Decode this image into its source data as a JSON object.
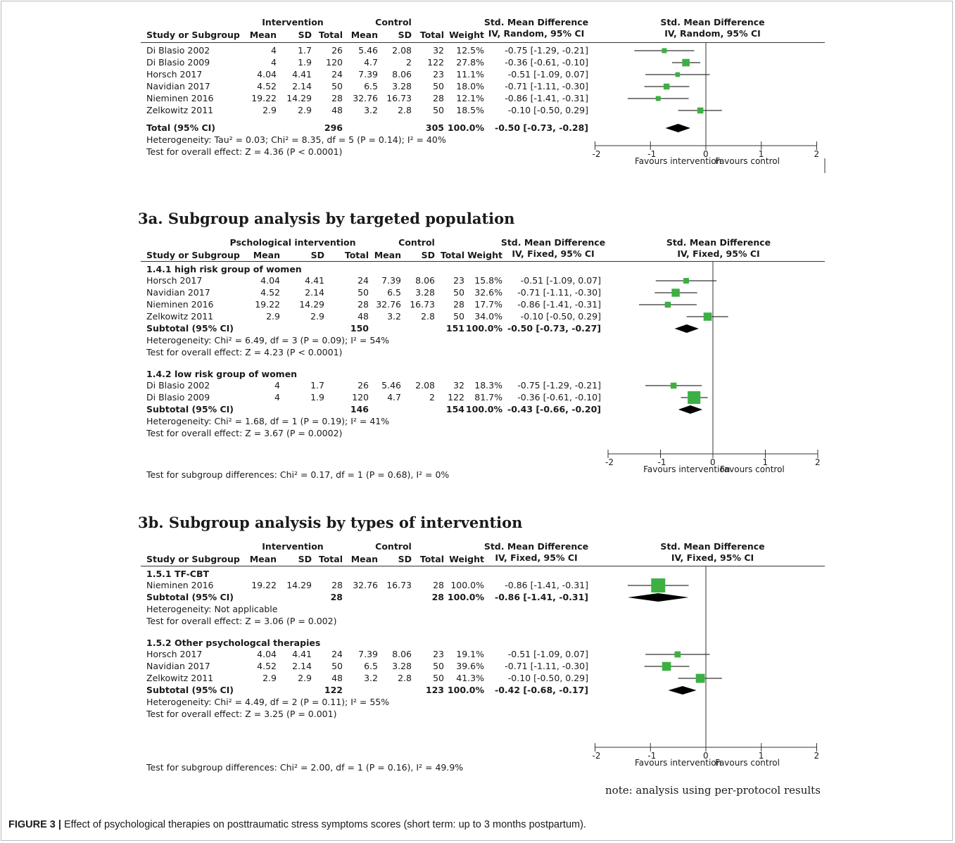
{
  "caption": {
    "label": "FIGURE 3 |",
    "text": "Effect of psychological therapies on posttraumatic stress symptoms scores (short term: up to 3 months postpartum)."
  },
  "note": "note: analysis using per-protocol results",
  "axis_ticks": [
    "-2",
    "-1",
    "0",
    "1",
    "2"
  ],
  "favours_left": "Favours intervention",
  "favours_right": "Favours control",
  "panels": [
    {
      "id": "overall",
      "section_title": "",
      "group_header": "Intervention",
      "control_header": "Control",
      "smd_header": "Std. Mean Difference",
      "method": "IV, Random, 95% CI",
      "col_headers": [
        "Study or Subgroup",
        "Mean",
        "SD",
        "Total",
        "Mean",
        "SD",
        "Total",
        "Weight"
      ],
      "subgroups": [
        {
          "title": "",
          "studies": [
            {
              "name": "Di Blasio 2002",
              "im": "4",
              "isd": "1.7",
              "it": "26",
              "cm": "5.46",
              "csd": "2.08",
              "ct": "32",
              "w": "12.5%",
              "ci": "-0.75 [-1.29, -0.21]",
              "est": -0.75,
              "lo": -1.29,
              "hi": -0.21,
              "weight": 12.5
            },
            {
              "name": "Di Blasio 2009",
              "im": "4",
              "isd": "1.9",
              "it": "120",
              "cm": "4.7",
              "csd": "2",
              "ct": "122",
              "w": "27.8%",
              "ci": "-0.36 [-0.61, -0.10]",
              "est": -0.36,
              "lo": -0.61,
              "hi": -0.1,
              "weight": 27.8
            },
            {
              "name": "Horsch 2017",
              "im": "4.04",
              "isd": "4.41",
              "it": "24",
              "cm": "7.39",
              "csd": "8.06",
              "ct": "23",
              "w": "11.1%",
              "ci": "-0.51 [-1.09, 0.07]",
              "est": -0.51,
              "lo": -1.09,
              "hi": 0.07,
              "weight": 11.1
            },
            {
              "name": "Navidian 2017",
              "im": "4.52",
              "isd": "2.14",
              "it": "50",
              "cm": "6.5",
              "csd": "3.28",
              "ct": "50",
              "w": "18.0%",
              "ci": "-0.71 [-1.11, -0.30]",
              "est": -0.71,
              "lo": -1.11,
              "hi": -0.3,
              "weight": 18.0
            },
            {
              "name": "Nieminen 2016",
              "im": "19.22",
              "isd": "14.29",
              "it": "28",
              "cm": "32.76",
              "csd": "16.73",
              "ct": "28",
              "w": "12.1%",
              "ci": "-0.86 [-1.41, -0.31]",
              "est": -0.86,
              "lo": -1.41,
              "hi": -0.31,
              "weight": 12.1
            },
            {
              "name": "Zelkowitz 2011",
              "im": "2.9",
              "isd": "2.9",
              "it": "48",
              "cm": "3.2",
              "csd": "2.8",
              "ct": "50",
              "w": "18.5%",
              "ci": "-0.10 [-0.50, 0.29]",
              "est": -0.1,
              "lo": -0.5,
              "hi": 0.29,
              "weight": 18.5
            }
          ],
          "subtotal": {
            "label": "Total (95% CI)",
            "it": "296",
            "ct": "305",
            "w": "100.0%",
            "ci": "-0.50 [-0.73, -0.28]",
            "est": -0.5,
            "lo": -0.73,
            "hi": -0.28
          },
          "het": "Heterogeneity: Tau² = 0.03; Chi² = 8.35, df = 5 (P = 0.14); I² = 40%",
          "test": "Test for overall effect: Z = 4.36 (P < 0.0001)"
        }
      ],
      "diff": ""
    },
    {
      "id": "3a",
      "section_title": "3a. Subgroup analysis by targeted population",
      "group_header": "Pschological intervention",
      "control_header": "Control",
      "smd_header": "Std. Mean Difference",
      "method": "IV, Fixed, 95% CI",
      "col_headers": [
        "Study or Subgroup",
        "Mean",
        "SD",
        "Total",
        "Mean",
        "SD",
        "Total",
        "Weight"
      ],
      "subgroups": [
        {
          "title": "1.4.1 high risk group of women",
          "studies": [
            {
              "name": "Horsch 2017",
              "im": "4.04",
              "isd": "4.41",
              "it": "24",
              "cm": "7.39",
              "csd": "8.06",
              "ct": "23",
              "w": "15.8%",
              "ci": "-0.51 [-1.09, 0.07]",
              "est": -0.51,
              "lo": -1.09,
              "hi": 0.07,
              "weight": 15.8
            },
            {
              "name": "Navidian 2017",
              "im": "4.52",
              "isd": "2.14",
              "it": "50",
              "cm": "6.5",
              "csd": "3.28",
              "ct": "50",
              "w": "32.6%",
              "ci": "-0.71 [-1.11, -0.30]",
              "est": -0.71,
              "lo": -1.11,
              "hi": -0.3,
              "weight": 32.6
            },
            {
              "name": "Nieminen 2016",
              "im": "19.22",
              "isd": "14.29",
              "it": "28",
              "cm": "32.76",
              "csd": "16.73",
              "ct": "28",
              "w": "17.7%",
              "ci": "-0.86 [-1.41, -0.31]",
              "est": -0.86,
              "lo": -1.41,
              "hi": -0.31,
              "weight": 17.7
            },
            {
              "name": "Zelkowitz 2011",
              "im": "2.9",
              "isd": "2.9",
              "it": "48",
              "cm": "3.2",
              "csd": "2.8",
              "ct": "50",
              "w": "34.0%",
              "ci": "-0.10 [-0.50, 0.29]",
              "est": -0.1,
              "lo": -0.5,
              "hi": 0.29,
              "weight": 34.0
            }
          ],
          "subtotal": {
            "label": "Subtotal (95% CI)",
            "it": "150",
            "ct": "151",
            "w": "100.0%",
            "ci": "-0.50 [-0.73, -0.27]",
            "est": -0.5,
            "lo": -0.73,
            "hi": -0.27
          },
          "het": "Heterogeneity: Chi² = 6.49, df = 3 (P = 0.09); I² = 54%",
          "test": "Test for overall effect: Z = 4.23 (P < 0.0001)"
        },
        {
          "title": "1.4.2 low risk group of women",
          "studies": [
            {
              "name": "Di Blasio 2002",
              "im": "4",
              "isd": "1.7",
              "it": "26",
              "cm": "5.46",
              "csd": "2.08",
              "ct": "32",
              "w": "18.3%",
              "ci": "-0.75 [-1.29, -0.21]",
              "est": -0.75,
              "lo": -1.29,
              "hi": -0.21,
              "weight": 18.3
            },
            {
              "name": "Di Blasio 2009",
              "im": "4",
              "isd": "1.9",
              "it": "120",
              "cm": "4.7",
              "csd": "2",
              "ct": "122",
              "w": "81.7%",
              "ci": "-0.36 [-0.61, -0.10]",
              "est": -0.36,
              "lo": -0.61,
              "hi": -0.1,
              "weight": 81.7
            }
          ],
          "subtotal": {
            "label": "Subtotal (95% CI)",
            "it": "146",
            "ct": "154",
            "w": "100.0%",
            "ci": "-0.43 [-0.66, -0.20]",
            "est": -0.43,
            "lo": -0.66,
            "hi": -0.2
          },
          "het": "Heterogeneity: Chi² = 1.68, df = 1 (P = 0.19); I² = 41%",
          "test": "Test for overall effect: Z = 3.67 (P = 0.0002)"
        }
      ],
      "diff": "Test for subgroup differences: Chi² = 0.17, df = 1 (P = 0.68), I² = 0%"
    },
    {
      "id": "3b",
      "section_title": "3b. Subgroup analysis by types of intervention",
      "group_header": "Intervention",
      "control_header": "Control",
      "smd_header": "Std. Mean Difference",
      "method": "IV, Fixed, 95% CI",
      "col_headers": [
        "Study or Subgroup",
        "Mean",
        "SD",
        "Total",
        "Mean",
        "SD",
        "Total",
        "Weight"
      ],
      "subgroups": [
        {
          "title": "1.5.1 TF-CBT",
          "studies": [
            {
              "name": "Nieminen 2016",
              "im": "19.22",
              "isd": "14.29",
              "it": "28",
              "cm": "32.76",
              "csd": "16.73",
              "ct": "28",
              "w": "100.0%",
              "ci": "-0.86 [-1.41, -0.31]",
              "est": -0.86,
              "lo": -1.41,
              "hi": -0.31,
              "weight": 100.0
            }
          ],
          "subtotal": {
            "label": "Subtotal (95% CI)",
            "it": "28",
            "ct": "28",
            "w": "100.0%",
            "ci": "-0.86 [-1.41, -0.31]",
            "est": -0.86,
            "lo": -1.41,
            "hi": -0.31
          },
          "het": "Heterogeneity: Not applicable",
          "test": "Test for overall effect: Z = 3.06 (P = 0.002)"
        },
        {
          "title": "1.5.2 Other psychologcal therapies",
          "studies": [
            {
              "name": "Horsch 2017",
              "im": "4.04",
              "isd": "4.41",
              "it": "24",
              "cm": "7.39",
              "csd": "8.06",
              "ct": "23",
              "w": "19.1%",
              "ci": "-0.51 [-1.09, 0.07]",
              "est": -0.51,
              "lo": -1.09,
              "hi": 0.07,
              "weight": 19.1
            },
            {
              "name": "Navidian 2017",
              "im": "4.52",
              "isd": "2.14",
              "it": "50",
              "cm": "6.5",
              "csd": "3.28",
              "ct": "50",
              "w": "39.6%",
              "ci": "-0.71 [-1.11, -0.30]",
              "est": -0.71,
              "lo": -1.11,
              "hi": -0.3,
              "weight": 39.6
            },
            {
              "name": "Zelkowitz 2011",
              "im": "2.9",
              "isd": "2.9",
              "it": "48",
              "cm": "3.2",
              "csd": "2.8",
              "ct": "50",
              "w": "41.3%",
              "ci": "-0.10 [-0.50, 0.29]",
              "est": -0.1,
              "lo": -0.5,
              "hi": 0.29,
              "weight": 41.3
            }
          ],
          "subtotal": {
            "label": "Subtotal (95% CI)",
            "it": "122",
            "ct": "123",
            "w": "100.0%",
            "ci": "-0.42 [-0.68, -0.17]",
            "est": -0.42,
            "lo": -0.68,
            "hi": -0.17
          },
          "het": "Heterogeneity: Chi² = 4.49, df = 2 (P = 0.11); I² = 55%",
          "test": "Test for overall effect: Z = 3.25 (P = 0.001)"
        }
      ],
      "diff": "Test for subgroup differences: Chi² = 2.00, df = 1 (P = 0.16), I² = 49.9%"
    }
  ],
  "colors": {
    "marker": "#3cb043",
    "diamond": "#000000",
    "line": "#333333"
  }
}
